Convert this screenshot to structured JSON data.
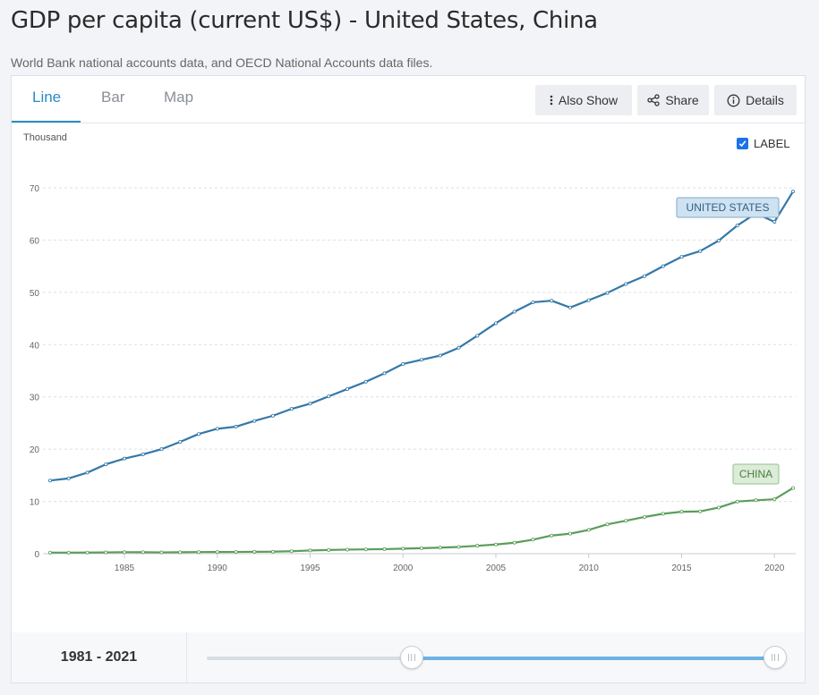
{
  "header": {
    "title": "GDP per capita (current US$) - United States, China",
    "subtitle": "World Bank national accounts data, and OECD National Accounts data files."
  },
  "tabs": [
    {
      "label": "Line",
      "active": true
    },
    {
      "label": "Bar",
      "active": false
    },
    {
      "label": "Map",
      "active": false
    }
  ],
  "actions": {
    "also_show": "Also Show",
    "share": "Share",
    "details": "Details"
  },
  "label_toggle": {
    "label": "LABEL",
    "checked": true
  },
  "colors": {
    "accent": "#2b8cc4",
    "us_series": "#3478a8",
    "china_series": "#5a9e5a",
    "slider_fill": "#6cb3e6"
  },
  "icons": {
    "also_show": "vertical-ellipsis-icon",
    "share": "share-icon",
    "details": "info-icon",
    "checkbox": "checkmark-icon",
    "handle": "grip-icon"
  },
  "slider": {
    "range_text": "1981 - 2021",
    "start_year": 1981,
    "end_year": 2021,
    "selected_start_fraction": 0.36,
    "selected_end_fraction": 1.0
  },
  "chart_data": {
    "type": "line",
    "ylabel": "Thousand",
    "ylim": [
      0,
      70
    ],
    "yticks": [
      0,
      10,
      20,
      30,
      40,
      50,
      60,
      70
    ],
    "xticks": [
      1985,
      1990,
      1995,
      2000,
      2005,
      2010,
      2015,
      2020
    ],
    "xlim": [
      1981,
      2021
    ],
    "grid": "horizontal dashed",
    "x": [
      1981,
      1982,
      1983,
      1984,
      1985,
      1986,
      1987,
      1988,
      1989,
      1990,
      1991,
      1992,
      1993,
      1994,
      1995,
      1996,
      1997,
      1998,
      1999,
      2000,
      2001,
      2002,
      2003,
      2004,
      2005,
      2006,
      2007,
      2008,
      2009,
      2010,
      2011,
      2012,
      2013,
      2014,
      2015,
      2016,
      2017,
      2018,
      2019,
      2020,
      2021
    ],
    "series": [
      {
        "name": "UNITED STATES",
        "color": "#3478a8",
        "values": [
          14.0,
          14.4,
          15.5,
          17.1,
          18.2,
          19.0,
          20.0,
          21.4,
          22.9,
          23.9,
          24.3,
          25.4,
          26.4,
          27.7,
          28.7,
          30.1,
          31.5,
          32.9,
          34.5,
          36.3,
          37.1,
          37.9,
          39.4,
          41.7,
          44.1,
          46.3,
          48.1,
          48.4,
          47.1,
          48.5,
          49.9,
          51.6,
          53.1,
          55.0,
          56.8,
          57.9,
          59.9,
          62.8,
          65.1,
          63.5,
          69.3
        ]
      },
      {
        "name": "CHINA",
        "color": "#5a9e5a",
        "values": [
          0.2,
          0.2,
          0.22,
          0.25,
          0.29,
          0.28,
          0.25,
          0.28,
          0.31,
          0.32,
          0.33,
          0.37,
          0.38,
          0.47,
          0.61,
          0.71,
          0.78,
          0.82,
          0.87,
          0.96,
          1.05,
          1.15,
          1.29,
          1.51,
          1.75,
          2.1,
          2.69,
          3.47,
          3.83,
          4.55,
          5.61,
          6.3,
          7.02,
          7.64,
          8.02,
          8.09,
          8.82,
          9.98,
          10.22,
          10.41,
          12.56
        ]
      }
    ]
  }
}
